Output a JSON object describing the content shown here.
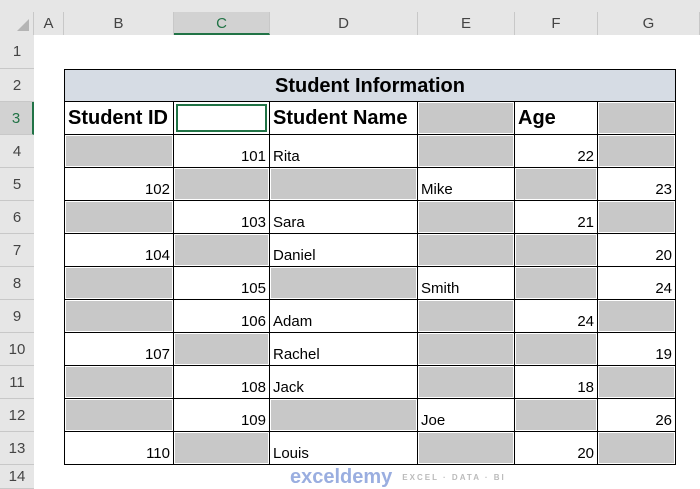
{
  "columns": [
    "A",
    "B",
    "C",
    "D",
    "E",
    "F",
    "G"
  ],
  "rows": [
    "1",
    "2",
    "3",
    "4",
    "5",
    "6",
    "7",
    "8",
    "9",
    "10",
    "11",
    "12",
    "13",
    "14"
  ],
  "selected": {
    "column": "C",
    "row": "3"
  },
  "title": "Student Information",
  "headers": [
    "Student ID",
    "",
    "Student Name",
    "",
    "Age",
    ""
  ],
  "table_rows": [
    [
      null,
      "101",
      "Rita",
      null,
      "22",
      null
    ],
    [
      "102",
      null,
      null,
      "Mike",
      null,
      "23"
    ],
    [
      null,
      "103",
      "Sara",
      null,
      "21",
      null
    ],
    [
      "104",
      null,
      "Daniel",
      null,
      null,
      "20"
    ],
    [
      null,
      "105",
      null,
      "Smith",
      null,
      "24"
    ],
    [
      null,
      "106",
      "Adam",
      null,
      "24",
      null
    ],
    [
      "107",
      null,
      "Rachel",
      null,
      null,
      "19"
    ],
    [
      null,
      "108",
      "Jack",
      null,
      "18",
      null
    ],
    [
      null,
      "109",
      null,
      "Joe",
      null,
      "26"
    ],
    [
      "110",
      null,
      "Louis",
      null,
      "20",
      null
    ]
  ],
  "gray_color": "#c8c8c8",
  "title_fill": "#d6dce4",
  "accent": "#217346",
  "watermark": {
    "name": "exceldemy",
    "tagline": "EXCEL · DATA · BI"
  }
}
